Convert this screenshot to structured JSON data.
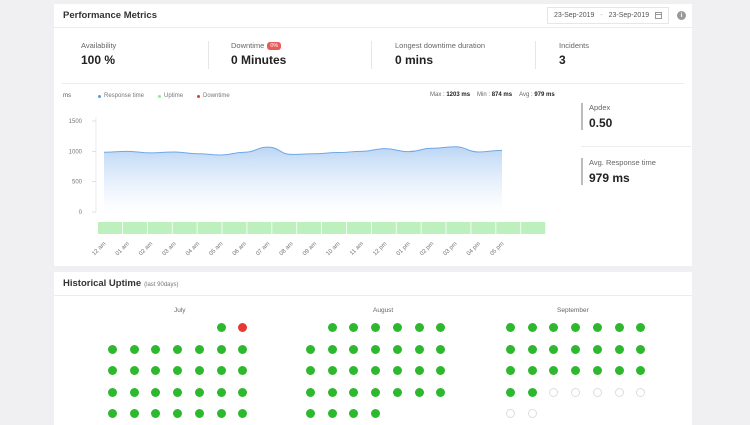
{
  "performance": {
    "title": "Performance Metrics",
    "date_from": "23-Sep-2019",
    "date_sep": "-",
    "date_to": "23-Sep-2019",
    "info_icon": "info-icon",
    "stats": [
      {
        "label": "Availability",
        "value": "100 %"
      },
      {
        "label": "Downtime",
        "badge": "0%",
        "value": "0 Minutes"
      },
      {
        "label": "Longest downtime duration",
        "value": "0 mins"
      },
      {
        "label": "Incidents",
        "value": "3"
      }
    ],
    "legend_unit": "ms",
    "legend": [
      {
        "label": "Response time",
        "color": "#5b9bd5"
      },
      {
        "label": "Uptime",
        "color": "#9be39b"
      },
      {
        "label": "Downtime",
        "color": "#e53935"
      }
    ],
    "summary": {
      "max_label": "Max :",
      "max_value": "1203 ms",
      "min_label": "Min :",
      "min_value": "874 ms",
      "avg_label": "Avg :",
      "avg_value": "979 ms"
    },
    "apdex": {
      "label": "Apdex",
      "value": "0.50"
    },
    "avg_response": {
      "label": "Avg. Response time",
      "value": "979 ms"
    }
  },
  "chart_data": {
    "type": "area",
    "ylabel": "ms",
    "ylim": [
      0,
      1500
    ],
    "yticks": [
      "0",
      "500",
      "1000",
      "1500"
    ],
    "categories": [
      "12 am",
      "01 am",
      "02 am",
      "03 am",
      "04 am",
      "05 am",
      "06 am",
      "07 am",
      "08 am",
      "09 am",
      "10 am",
      "11 am",
      "12 pm",
      "01 pm",
      "02 pm",
      "03 pm",
      "04 pm",
      "05 pm"
    ],
    "series": [
      {
        "name": "Response time",
        "color": "#6fa8e6",
        "values": [
          985,
          1000,
          975,
          990,
          960,
          940,
          985,
          1070,
          950,
          960,
          980,
          1000,
          1045,
          995,
          1050,
          1075,
          990,
          1015
        ]
      }
    ],
    "uptime_bar_color": "#bdf0bd",
    "uptime_segments": 18
  },
  "historical": {
    "title": "Historical Uptime",
    "subtitle": "(last 90days)",
    "months": [
      {
        "name": "July",
        "start_col": 5,
        "days": 31,
        "down_days": [
          2
        ]
      },
      {
        "name": "August",
        "start_col": 1,
        "days": 31,
        "down_days": []
      },
      {
        "name": "September",
        "start_col": 0,
        "days": 23,
        "empty_after": 23,
        "total_cells": 30,
        "down_days": []
      }
    ]
  }
}
